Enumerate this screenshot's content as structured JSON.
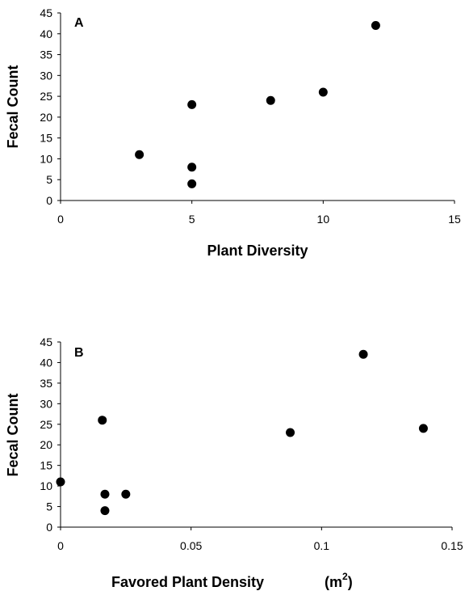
{
  "chart_data": [
    {
      "type": "scatter",
      "panel_label": "A",
      "xlabel": "Plant Diversity",
      "ylabel": "Fecal Count",
      "xlim": [
        0,
        15
      ],
      "ylim": [
        0,
        45
      ],
      "x_ticks": [
        0,
        5,
        10,
        15
      ],
      "y_ticks": [
        0,
        5,
        10,
        15,
        20,
        25,
        30,
        35,
        40,
        45
      ],
      "x_tick_labels": [
        "0",
        "5",
        "10",
        "15"
      ],
      "y_tick_labels": [
        "0",
        "5",
        "10",
        "15",
        "20",
        "25",
        "30",
        "35",
        "40",
        "45"
      ],
      "grid": false,
      "points": [
        {
          "x": 3,
          "y": 11
        },
        {
          "x": 5,
          "y": 4
        },
        {
          "x": 5,
          "y": 8
        },
        {
          "x": 5,
          "y": 23
        },
        {
          "x": 8,
          "y": 24
        },
        {
          "x": 10,
          "y": 26
        },
        {
          "x": 12,
          "y": 42
        }
      ]
    },
    {
      "type": "scatter",
      "panel_label": "B",
      "xlabel": "Favored Plant Density",
      "xlabel_unit_base": "(m",
      "xlabel_unit_sup": "2",
      "xlabel_unit_close": ")",
      "ylabel": "Fecal Count",
      "xlim": [
        0,
        0.15
      ],
      "ylim": [
        0,
        45
      ],
      "x_ticks": [
        0,
        0.05,
        0.1,
        0.15
      ],
      "y_ticks": [
        0,
        5,
        10,
        15,
        20,
        25,
        30,
        35,
        40,
        45
      ],
      "x_tick_labels": [
        "0",
        "0.05",
        "0.1",
        "0.15"
      ],
      "y_tick_labels": [
        "0",
        "5",
        "10",
        "15",
        "20",
        "25",
        "30",
        "35",
        "40",
        "45"
      ],
      "grid": false,
      "points": [
        {
          "x": 0,
          "y": 11
        },
        {
          "x": 0.016,
          "y": 26
        },
        {
          "x": 0.017,
          "y": 8
        },
        {
          "x": 0.017,
          "y": 4
        },
        {
          "x": 0.025,
          "y": 8
        },
        {
          "x": 0.088,
          "y": 23
        },
        {
          "x": 0.116,
          "y": 42
        },
        {
          "x": 0.139,
          "y": 24
        }
      ]
    }
  ]
}
